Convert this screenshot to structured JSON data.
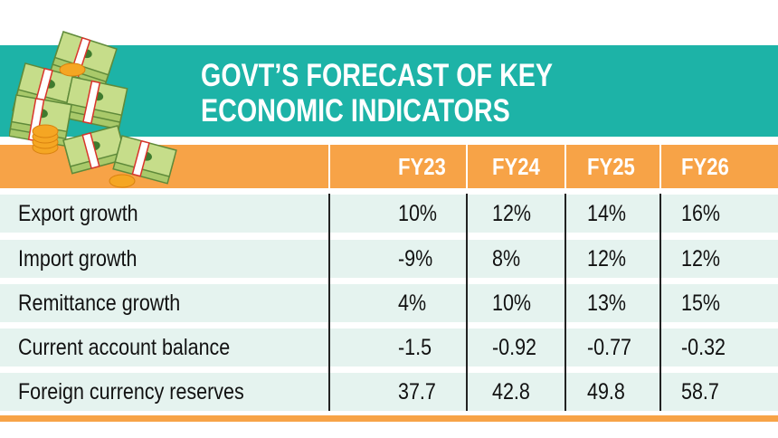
{
  "title_lines": [
    "GOVT’S FORECAST OF KEY",
    "ECONOMIC INDICATORS"
  ],
  "illustration": "money-stacks-and-coins",
  "colors": {
    "teal": "#1db3a7",
    "orange": "#f7a347",
    "row": "#e5f3ef"
  },
  "chart_data": {
    "type": "table",
    "title": "GOVT’S FORECAST OF KEY ECONOMIC INDICATORS",
    "columns": [
      "FY23",
      "FY24",
      "FY25",
      "FY26"
    ],
    "rows": [
      {
        "label": "Export growth",
        "values": [
          "10%",
          "12%",
          "14%",
          "16%"
        ]
      },
      {
        "label": "Import growth",
        "values": [
          "-9%",
          "8%",
          "12%",
          "12%"
        ]
      },
      {
        "label": "Remittance growth",
        "values": [
          "4%",
          "10%",
          "13%",
          "15%"
        ]
      },
      {
        "label": "Current account balance",
        "values": [
          "-1.5",
          "-0.92",
          "-0.77",
          "-0.32"
        ]
      },
      {
        "label": "Foreign currency reserves",
        "values": [
          "37.7",
          "42.8",
          "49.8",
          "58.7"
        ]
      }
    ]
  }
}
